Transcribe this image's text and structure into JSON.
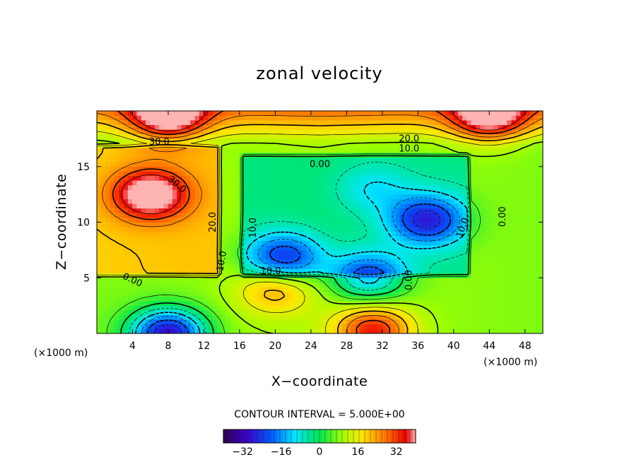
{
  "chart_data": {
    "type": "heatmap",
    "title": "zonal velocity",
    "xlabel": "X−coordinate",
    "ylabel": "Z−coordinate",
    "x_unit": "(×1000 m)",
    "z_unit": "(×1000 m)",
    "xlim": [
      0,
      50
    ],
    "ylim": [
      0,
      20
    ],
    "x_ticks": [
      4,
      8,
      12,
      16,
      20,
      24,
      28,
      32,
      36,
      40,
      44,
      48
    ],
    "y_ticks": [
      5,
      10,
      15
    ],
    "contour_interval_text": "CONTOUR INTERVAL = 5.000E+00",
    "colorbar": {
      "range": [
        -40,
        40
      ],
      "ticks": [
        -32,
        -16,
        0,
        16,
        32
      ],
      "tick_labels": [
        "−32",
        "−16",
        "0",
        "16",
        "32"
      ]
    },
    "contour_labels": [
      {
        "text": "30.0",
        "x": 7,
        "z": 17.2,
        "level": 30
      },
      {
        "text": "30.0",
        "x": 9,
        "z": 13.4,
        "level": 30,
        "angle": 40
      },
      {
        "text": "20.0",
        "x": 13,
        "z": 10,
        "level": 20,
        "angle": -90
      },
      {
        "text": "10.0",
        "x": 14,
        "z": 6.5,
        "level": 10,
        "angle": -80
      },
      {
        "text": "0.00",
        "x": 4,
        "z": 4.8,
        "level": 0,
        "angle": 25
      },
      {
        "text": "0.00",
        "x": 25,
        "z": 15.2,
        "level": 0
      },
      {
        "text": "20.0",
        "x": 35,
        "z": 17.5,
        "level": 20
      },
      {
        "text": "10.0",
        "x": 35,
        "z": 16.6,
        "level": 10
      },
      {
        "text": "10.0",
        "x": 17.5,
        "z": 9.5,
        "level": 10,
        "angle": -90
      },
      {
        "text": "10.0",
        "x": 19.5,
        "z": 5.6,
        "level": 10
      },
      {
        "text": "0.00",
        "x": 35,
        "z": 4.8,
        "level": 0,
        "angle": -90
      },
      {
        "text": "10.0",
        "x": 41,
        "z": 9.5,
        "level": 10,
        "angle": -70
      },
      {
        "text": "0.00",
        "x": 45.5,
        "z": 10.5,
        "level": 0,
        "angle": -90
      }
    ],
    "features": [
      {
        "type": "max",
        "x": 6,
        "z": 12.5,
        "value": 38
      },
      {
        "type": "min",
        "x": 21,
        "z": 6.8,
        "value": -22
      },
      {
        "type": "min",
        "x": 37,
        "z": 10.2,
        "value": -24
      },
      {
        "type": "min",
        "x": 30.5,
        "z": 5,
        "value": -20
      },
      {
        "type": "min",
        "x": 8,
        "z": 0,
        "value": -40
      },
      {
        "type": "max",
        "x": 31,
        "z": 0.3,
        "value": 35
      },
      {
        "type": "max",
        "x": 20,
        "z": 4,
        "value": 22
      },
      {
        "type": "max",
        "x": 8,
        "z": 19.5,
        "value": 38
      },
      {
        "type": "max",
        "x": 44,
        "z": 19.5,
        "value": 36
      },
      {
        "type": "min",
        "x": 31,
        "z": 13,
        "value": -4
      }
    ]
  }
}
